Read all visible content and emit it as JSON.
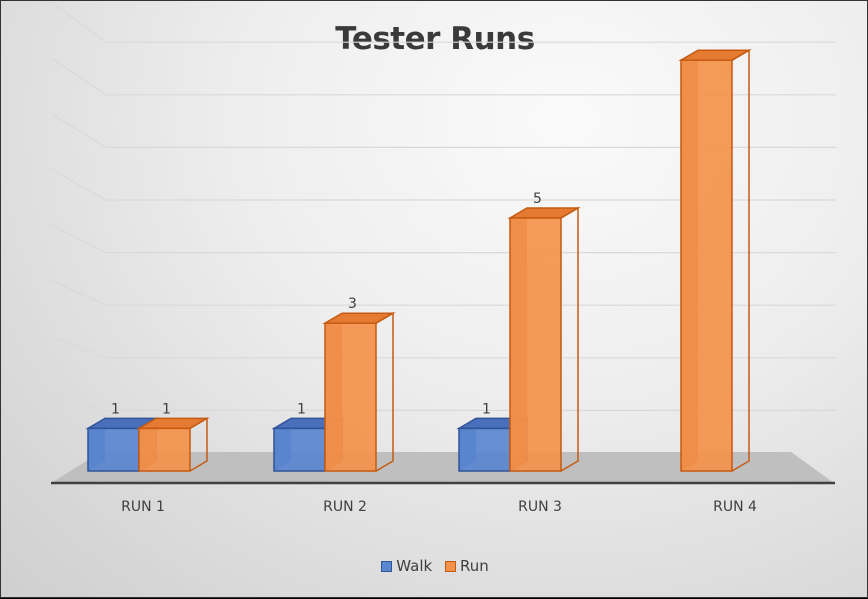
{
  "chart_data": {
    "type": "bar",
    "subtype": "3d-clustered-column",
    "title": "Tester Runs",
    "categories": [
      "RUN 1",
      "RUN 2",
      "RUN 3",
      "RUN 4"
    ],
    "series": [
      {
        "name": "Walk",
        "color": "#4472C4",
        "values": [
          1,
          1,
          1,
          0
        ],
        "labels": [
          "1",
          "1",
          "1",
          ""
        ]
      },
      {
        "name": "Run",
        "color": "#ED7D31",
        "values": [
          1,
          3,
          5,
          8
        ],
        "labels": [
          "1",
          "3",
          "5",
          ""
        ]
      }
    ],
    "xlabel": "",
    "ylabel": "",
    "ylim": [
      0,
      8
    ],
    "grid": true,
    "legend_position": "bottom"
  },
  "legend": {
    "items": [
      {
        "label": "Walk",
        "color": "#4472C4"
      },
      {
        "label": "Run",
        "color": "#ED7D31"
      }
    ]
  }
}
